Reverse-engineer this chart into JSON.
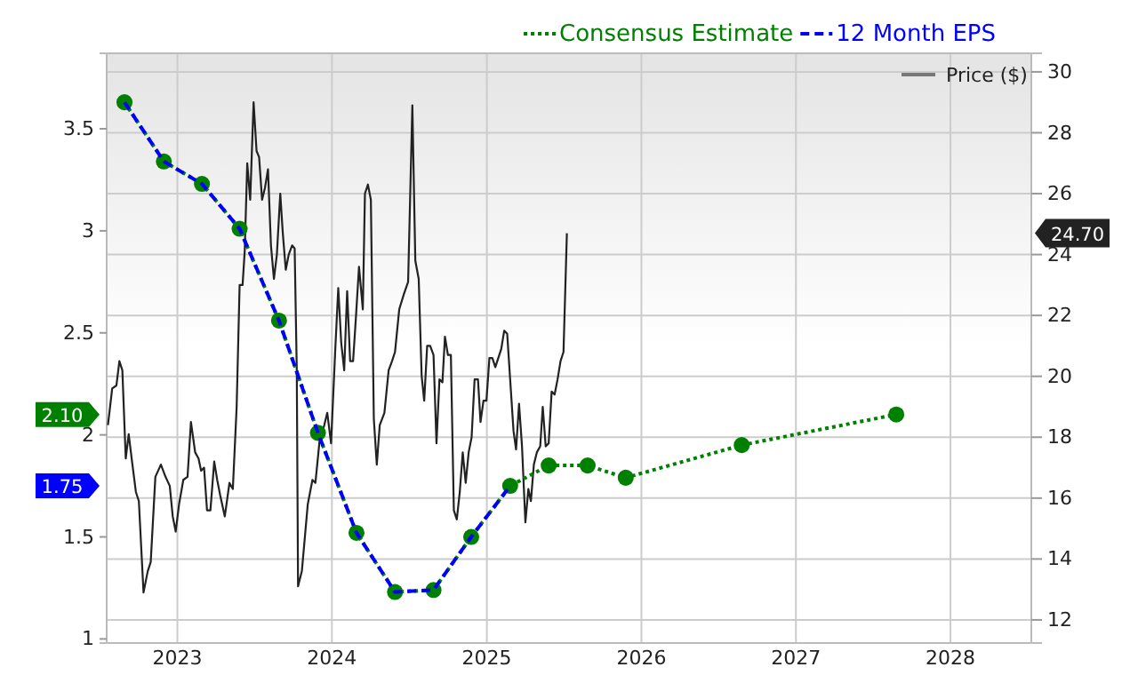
{
  "chart_data": {
    "type": "line",
    "xlim": [
      "2022-07-18",
      "2028-07-10"
    ],
    "xticks": [
      {
        "value": "2023-01-01",
        "label": "2023"
      },
      {
        "value": "2024-01-01",
        "label": "2024"
      },
      {
        "value": "2025-01-01",
        "label": "2025"
      },
      {
        "value": "2026-01-01",
        "label": "2026"
      },
      {
        "value": "2027-01-01",
        "label": "2027"
      },
      {
        "value": "2028-01-01",
        "label": "2028"
      }
    ],
    "ylim": [
      0.98,
      3.87
    ],
    "yticks": [
      1,
      1.5,
      2,
      2.5,
      3,
      3.5
    ],
    "y2lim": [
      11.24,
      30.61
    ],
    "y2ticks": [
      12,
      14,
      16,
      18,
      20,
      22,
      24,
      26,
      28,
      30
    ],
    "grid": true,
    "legend": "top right",
    "series": [
      {
        "name": "Price ($)",
        "type": "line",
        "axis": "y2",
        "color": "#222222",
        "line_style": "solid",
        "marker": "none",
        "x": [
          "2022-07-21",
          "2022-07-31",
          "2022-08-10",
          "2022-08-17",
          "2022-08-24",
          "2022-09-01",
          "2022-09-08",
          "2022-09-15",
          "2022-09-25",
          "2022-10-02",
          "2022-10-13",
          "2022-10-23",
          "2022-10-30",
          "2022-11-10",
          "2022-11-23",
          "2022-12-04",
          "2022-12-14",
          "2022-12-21",
          "2022-12-28",
          "2023-01-05",
          "2023-01-15",
          "2023-01-25",
          "2023-02-02",
          "2023-02-12",
          "2023-02-20",
          "2023-02-26",
          "2023-03-05",
          "2023-03-12",
          "2023-03-20",
          "2023-03-29",
          "2023-04-05",
          "2023-04-12",
          "2023-04-23",
          "2023-05-04",
          "2023-05-12",
          "2023-05-21",
          "2023-05-28",
          "2023-06-04",
          "2023-06-09",
          "2023-06-15",
          "2023-06-22",
          "2023-06-30",
          "2023-07-07",
          "2023-07-13",
          "2023-07-20",
          "2023-07-27",
          "2023-08-03",
          "2023-08-10",
          "2023-08-17",
          "2023-08-24",
          "2023-09-01",
          "2023-09-07",
          "2023-09-14",
          "2023-09-21",
          "2023-09-29",
          "2023-10-05",
          "2023-10-10",
          "2023-10-13",
          "2023-10-22",
          "2023-10-29",
          "2023-11-05",
          "2023-11-16",
          "2023-11-23",
          "2023-12-03",
          "2023-12-14",
          "2023-12-21",
          "2023-12-30",
          "2024-01-09",
          "2024-01-16",
          "2024-01-23",
          "2024-01-30",
          "2024-02-06",
          "2024-02-13",
          "2024-02-20",
          "2024-02-27",
          "2024-03-05",
          "2024-03-14",
          "2024-03-19",
          "2024-03-26",
          "2024-04-02",
          "2024-04-09",
          "2024-04-16",
          "2024-04-23",
          "2024-05-04",
          "2024-05-14",
          "2024-05-22",
          "2024-05-29",
          "2024-06-08",
          "2024-06-19",
          "2024-06-29",
          "2024-07-09",
          "2024-07-16",
          "2024-07-24",
          "2024-07-31",
          "2024-08-06",
          "2024-08-13",
          "2024-08-20",
          "2024-08-28",
          "2024-09-04",
          "2024-09-11",
          "2024-09-18",
          "2024-09-24",
          "2024-10-01",
          "2024-10-08",
          "2024-10-15",
          "2024-10-22",
          "2024-10-29",
          "2024-11-05",
          "2024-11-12",
          "2024-11-19",
          "2024-11-26",
          "2024-12-03",
          "2024-12-11",
          "2024-12-17",
          "2024-12-24",
          "2024-12-31",
          "2025-01-07",
          "2025-01-14",
          "2025-01-21",
          "2025-01-28",
          "2025-02-04",
          "2025-02-11",
          "2025-02-18",
          "2025-02-25",
          "2025-03-05",
          "2025-03-11",
          "2025-03-18",
          "2025-03-25",
          "2025-04-02",
          "2025-04-09",
          "2025-04-15",
          "2025-04-22",
          "2025-04-29",
          "2025-05-07",
          "2025-05-13",
          "2025-05-20",
          "2025-05-27",
          "2025-06-03",
          "2025-06-10",
          "2025-06-17",
          "2025-06-24",
          "2025-07-01",
          "2025-07-09"
        ],
        "values": [
          18.4,
          19.6,
          19.7,
          20.5,
          20.2,
          17.3,
          18.1,
          17.3,
          16.2,
          15.9,
          12.9,
          13.6,
          13.9,
          16.7,
          17.1,
          16.7,
          16.4,
          15.4,
          14.9,
          15.8,
          16.6,
          16.7,
          18.5,
          17.5,
          17.3,
          16.9,
          17.0,
          15.6,
          15.6,
          17.2,
          16.6,
          16.1,
          15.4,
          16.5,
          16.3,
          19.0,
          23.0,
          23.0,
          24.1,
          27.0,
          25.8,
          29.0,
          27.4,
          27.2,
          25.8,
          26.2,
          26.8,
          24.3,
          23.2,
          24.0,
          26.0,
          24.7,
          23.5,
          24.0,
          24.3,
          24.2,
          20.2,
          13.1,
          13.6,
          14.7,
          15.8,
          16.6,
          16.5,
          17.9,
          18.4,
          18.8,
          17.8,
          20.9,
          22.9,
          21.1,
          20.2,
          22.8,
          20.5,
          20.5,
          22.0,
          23.6,
          22.2,
          26.0,
          26.3,
          25.8,
          18.6,
          17.1,
          18.4,
          18.8,
          20.2,
          20.5,
          20.8,
          22.2,
          22.7,
          23.1,
          28.9,
          23.8,
          23.2,
          20.0,
          19.2,
          21.0,
          21.0,
          20.7,
          17.8,
          19.9,
          19.8,
          21.3,
          20.7,
          20.7,
          15.6,
          15.3,
          16.2,
          17.5,
          16.5,
          17.5,
          18.0,
          19.9,
          19.9,
          18.5,
          19.2,
          19.2,
          20.6,
          20.6,
          20.3,
          20.6,
          20.9,
          21.5,
          21.4,
          19.9,
          18.2,
          17.6,
          19.1,
          17.7,
          15.2,
          16.3,
          15.9,
          17.1,
          17.5,
          17.7,
          19.0,
          17.7,
          17.8,
          19.5,
          19.4,
          19.9,
          20.5,
          20.8,
          24.7
        ]
      },
      {
        "name": "Consensus Estimate",
        "type": "line",
        "axis": "y",
        "color": "#008000",
        "line_style": "dotted",
        "marker": "circle",
        "x": [
          "2022-08-29",
          "2022-11-30",
          "2023-02-28",
          "2023-05-28",
          "2023-08-29",
          "2023-11-29",
          "2024-02-28",
          "2024-05-29",
          "2024-08-28",
          "2024-11-25",
          "2025-02-25",
          "2025-05-27",
          "2025-08-27",
          "2025-11-25",
          "2026-08-26",
          "2027-08-26"
        ],
        "values": [
          3.63,
          3.34,
          3.23,
          3.01,
          2.56,
          2.01,
          1.52,
          1.23,
          1.24,
          1.5,
          1.75,
          1.85,
          1.85,
          1.79,
          1.95,
          2.1
        ]
      },
      {
        "name": "12 Month EPS",
        "type": "line",
        "axis": "y",
        "color": "#0000ff",
        "line_style": "dashed",
        "marker": "none",
        "x": [
          "2022-08-29",
          "2022-11-30",
          "2023-02-28",
          "2023-05-28",
          "2023-08-29",
          "2023-11-29",
          "2024-02-28",
          "2024-05-29",
          "2024-08-28",
          "2024-11-25",
          "2025-02-25"
        ],
        "values": [
          3.63,
          3.34,
          3.23,
          3.01,
          2.56,
          2.01,
          1.52,
          1.23,
          1.24,
          1.5,
          1.75
        ]
      }
    ],
    "annotations": [
      "2.10",
      "1.75",
      "24.70"
    ]
  }
}
